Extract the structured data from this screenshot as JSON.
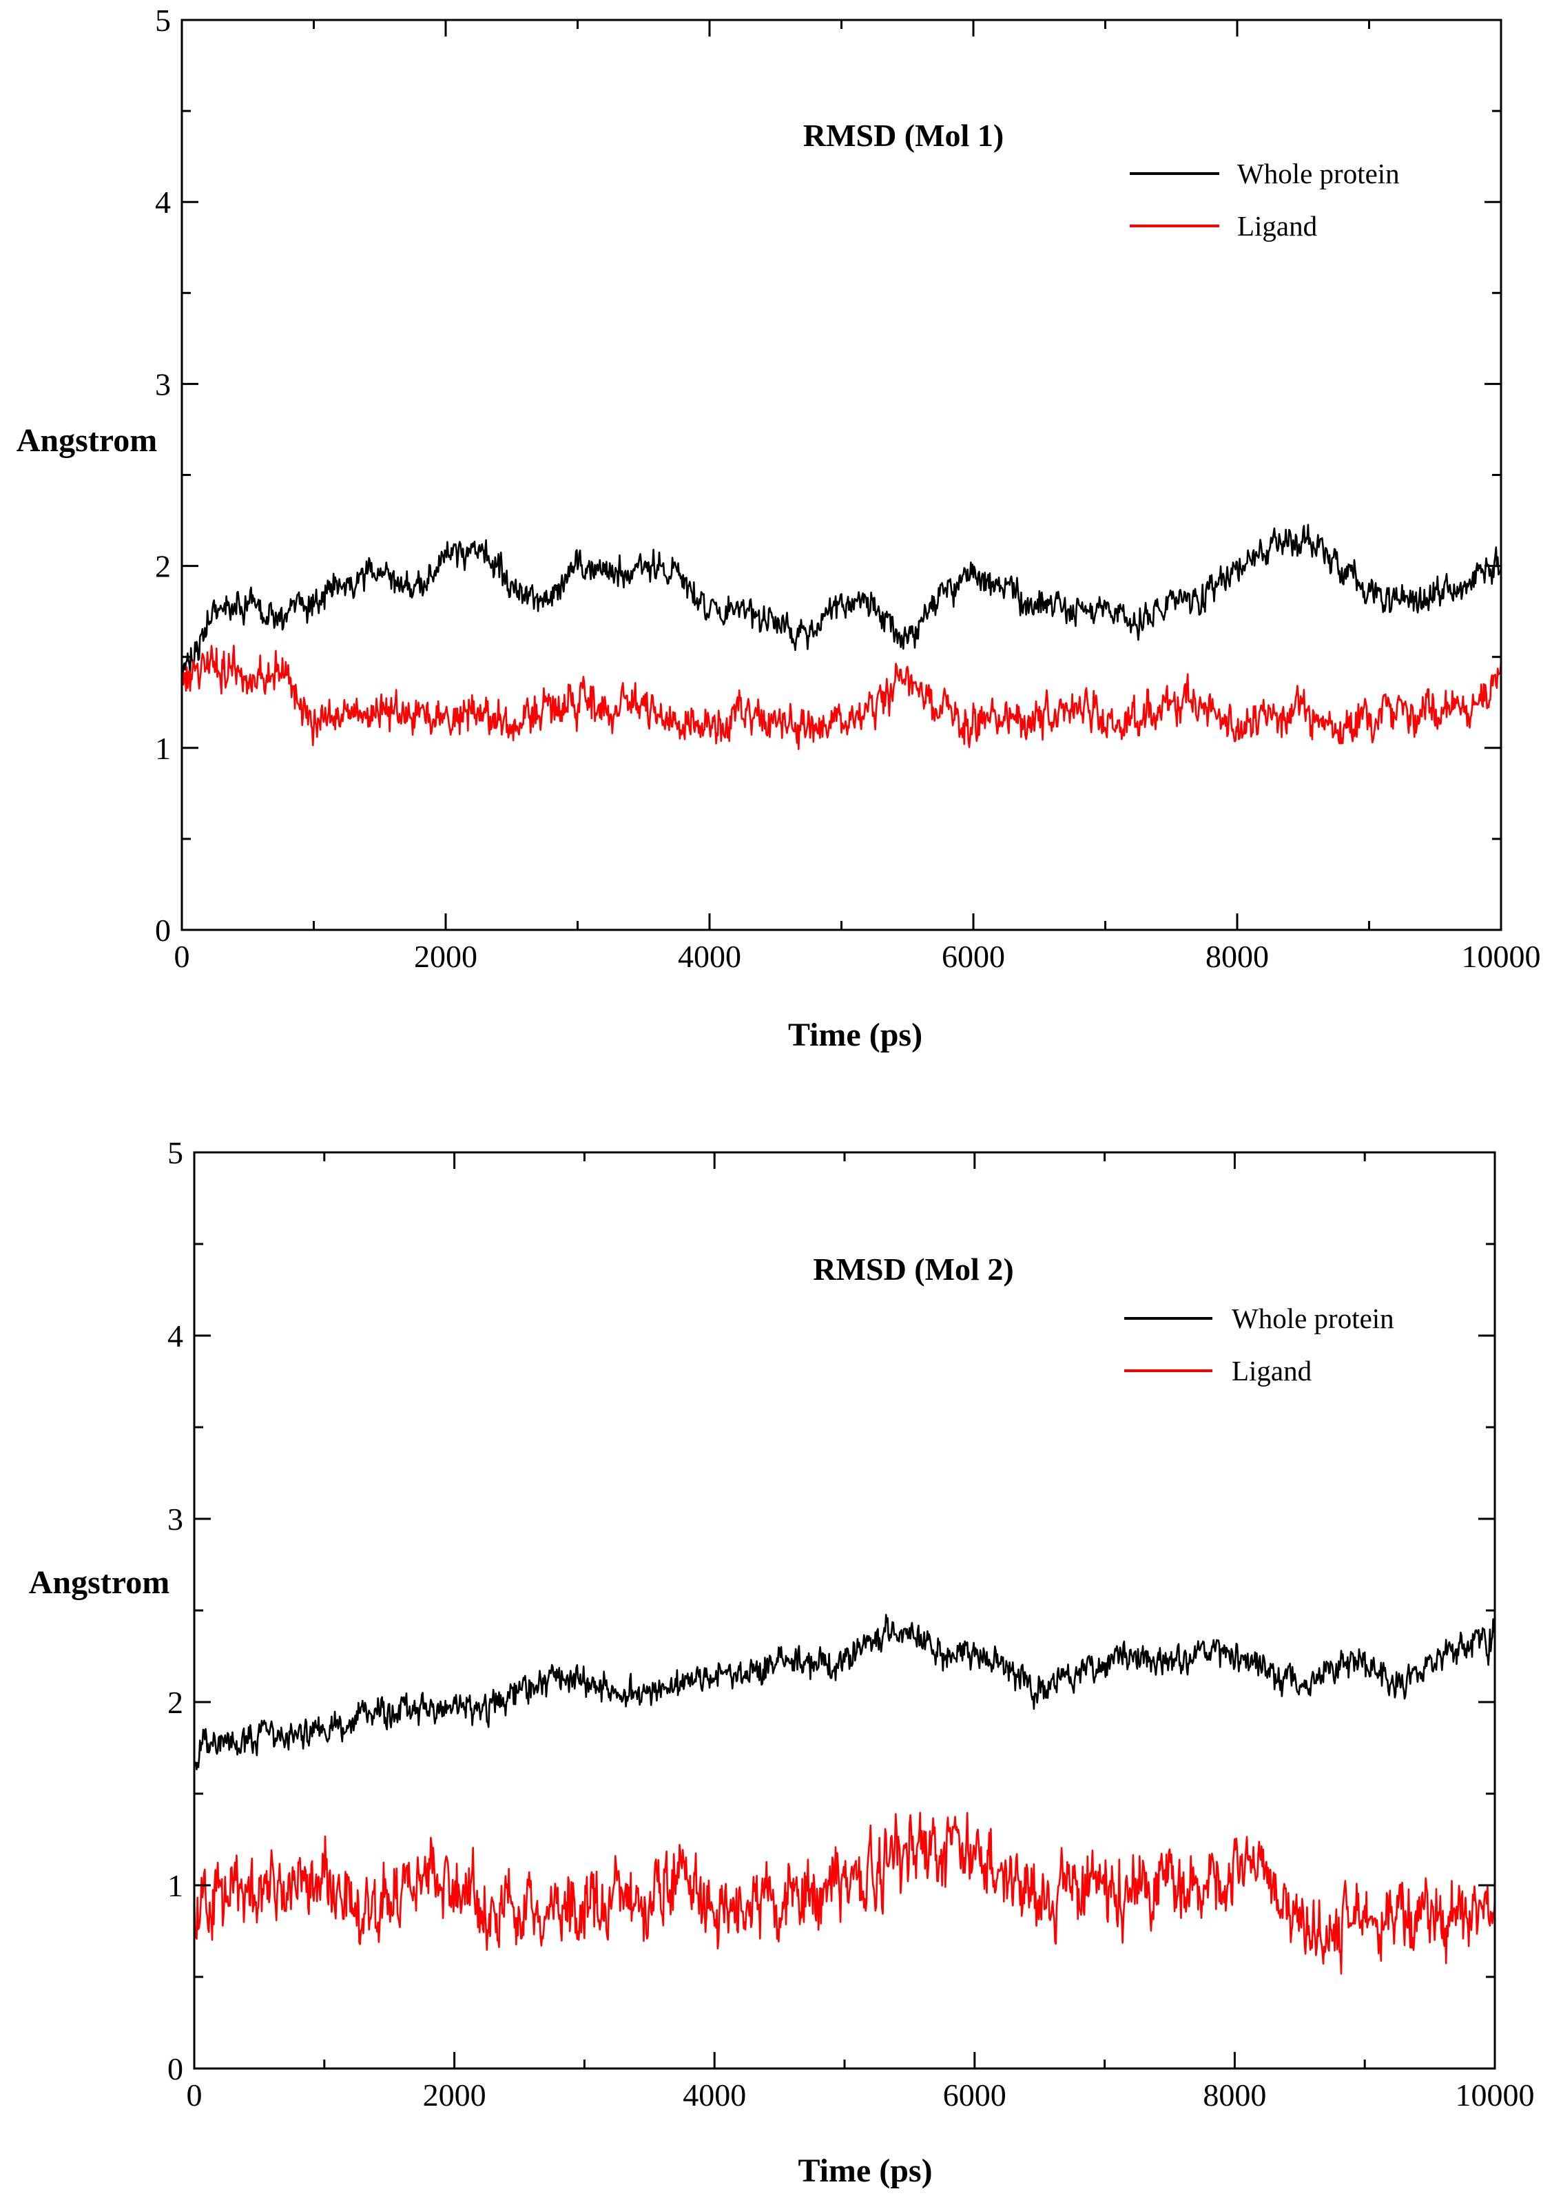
{
  "chart_data": [
    {
      "type": "line",
      "title": "RMSD (Mol 1)",
      "xlabel": "Time (ps)",
      "ylabel": "Angstrom",
      "xlim": [
        0,
        10000
      ],
      "ylim": [
        0,
        5
      ],
      "xticks": [
        0,
        2000,
        4000,
        6000,
        8000,
        10000
      ],
      "xtick_labels": [
        "0",
        "2000",
        "4000",
        "6000",
        "8000",
        "10000"
      ],
      "yticks": [
        0,
        1,
        2,
        3,
        4,
        5
      ],
      "ytick_labels": [
        "0",
        "1",
        "2",
        "3",
        "4",
        "5"
      ],
      "grid": false,
      "legend_position": "top-right",
      "x": [
        0,
        250,
        500,
        750,
        1000,
        1250,
        1500,
        1750,
        2000,
        2250,
        2500,
        2750,
        3000,
        3250,
        3500,
        3750,
        4000,
        4250,
        4500,
        4750,
        5000,
        5250,
        5500,
        5750,
        6000,
        6250,
        6500,
        6750,
        7000,
        7250,
        7500,
        7750,
        8000,
        8250,
        8500,
        8750,
        9000,
        9250,
        9500,
        9750,
        10000
      ],
      "series": [
        {
          "name": "Whole protein",
          "color": "#000000",
          "values": [
            1.4,
            1.75,
            1.8,
            1.7,
            1.8,
            1.95,
            1.95,
            1.85,
            2.05,
            2.1,
            1.9,
            1.8,
            2.0,
            1.95,
            2.0,
            2.0,
            1.75,
            1.75,
            1.7,
            1.6,
            1.8,
            1.8,
            1.6,
            1.85,
            1.95,
            1.85,
            1.8,
            1.75,
            1.75,
            1.7,
            1.8,
            1.85,
            2.0,
            2.1,
            2.15,
            2.0,
            1.85,
            1.8,
            1.85,
            1.9,
            2.0
          ]
        },
        {
          "name": "Ligand",
          "color": "#ff0000",
          "values": [
            1.45,
            1.45,
            1.4,
            1.45,
            1.1,
            1.15,
            1.2,
            1.15,
            1.2,
            1.2,
            1.15,
            1.2,
            1.25,
            1.2,
            1.25,
            1.15,
            1.1,
            1.2,
            1.15,
            1.1,
            1.15,
            1.2,
            1.4,
            1.2,
            1.15,
            1.15,
            1.15,
            1.2,
            1.2,
            1.15,
            1.25,
            1.25,
            1.1,
            1.2,
            1.2,
            1.1,
            1.15,
            1.2,
            1.2,
            1.2,
            1.4
          ]
        }
      ]
    },
    {
      "type": "line",
      "title": "RMSD (Mol 2)",
      "xlabel": "Time (ps)",
      "ylabel": "Angstrom",
      "xlim": [
        0,
        10000
      ],
      "ylim": [
        0,
        5
      ],
      "xticks": [
        0,
        2000,
        4000,
        6000,
        8000,
        10000
      ],
      "xtick_labels": [
        "0",
        "2000",
        "4000",
        "6000",
        "8000",
        "10000"
      ],
      "yticks": [
        0,
        1,
        2,
        3,
        4,
        5
      ],
      "ytick_labels": [
        "0",
        "1",
        "2",
        "3",
        "4",
        "5"
      ],
      "grid": false,
      "legend_position": "top-right",
      "x": [
        0,
        250,
        500,
        750,
        1000,
        1250,
        1500,
        1750,
        2000,
        2250,
        2500,
        2750,
        3000,
        3250,
        3500,
        3750,
        4000,
        4250,
        4500,
        4750,
        5000,
        5250,
        5500,
        5750,
        6000,
        6250,
        6500,
        6750,
        7000,
        7250,
        7500,
        7750,
        8000,
        8250,
        8500,
        8750,
        9000,
        9250,
        9500,
        9750,
        10000
      ],
      "series": [
        {
          "name": "Whole protein",
          "color": "#000000",
          "values": [
            1.7,
            1.8,
            1.8,
            1.85,
            1.85,
            1.9,
            1.95,
            1.95,
            2.0,
            1.95,
            2.05,
            2.15,
            2.1,
            2.05,
            2.05,
            2.1,
            2.15,
            2.15,
            2.2,
            2.2,
            2.2,
            2.35,
            2.4,
            2.25,
            2.25,
            2.2,
            2.05,
            2.15,
            2.2,
            2.25,
            2.2,
            2.3,
            2.25,
            2.15,
            2.1,
            2.2,
            2.2,
            2.1,
            2.2,
            2.3,
            2.35
          ]
        },
        {
          "name": "Ligand",
          "color": "#ff0000",
          "values": [
            0.85,
            0.95,
            0.95,
            1.0,
            1.05,
            0.85,
            0.95,
            1.05,
            1.0,
            0.9,
            0.85,
            0.85,
            0.85,
            0.95,
            0.9,
            1.1,
            0.85,
            0.9,
            0.9,
            0.95,
            1.0,
            1.1,
            1.2,
            1.15,
            1.2,
            1.05,
            0.95,
            0.95,
            1.0,
            0.95,
            1.0,
            1.0,
            1.05,
            1.05,
            0.8,
            0.75,
            0.8,
            0.85,
            0.8,
            0.85,
            0.85
          ]
        }
      ]
    }
  ]
}
